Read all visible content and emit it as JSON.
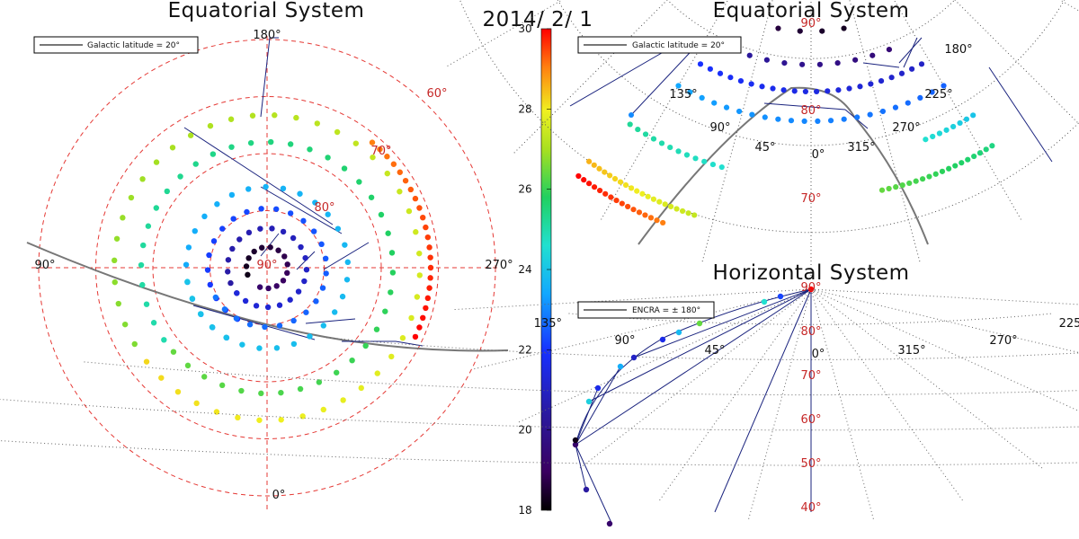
{
  "date": "2014/ 2/ 1",
  "colorbar": {
    "min": 18,
    "max": 30,
    "ticks": [
      "18",
      "20",
      "22",
      "24",
      "26",
      "28",
      "30"
    ],
    "colormap": "rainbow"
  },
  "chart_data": [
    {
      "type": "scatter",
      "projection": "polar",
      "title": "Equatorial System",
      "legend": "Galactic latitude = 20°",
      "ra_labels": [
        "180°",
        "270°",
        "0°",
        "90°"
      ],
      "dec_labels": [
        "60°",
        "70°",
        "80°",
        "90°"
      ],
      "series_note": "points colored by hour value (colorbar 18-30)"
    },
    {
      "type": "scatter",
      "projection": "polar-zoom",
      "title": "Equatorial System",
      "legend": "Galactic latitude = 20°",
      "ra_labels": [
        "180°",
        "225°",
        "270°",
        "315°",
        "0°",
        "45°",
        "90°",
        "135°"
      ],
      "dec_labels": [
        "90°",
        "80°",
        "70°"
      ]
    },
    {
      "type": "scatter",
      "projection": "horizontal",
      "title": "Horizontal System",
      "legend": "ENCRA = ± 180°",
      "az_labels": [
        "225",
        "270°",
        "315°",
        "0°",
        "45°",
        "90°",
        "135°"
      ],
      "alt_labels": [
        "90°",
        "80°",
        "70°",
        "60°",
        "50°",
        "40°"
      ]
    }
  ]
}
